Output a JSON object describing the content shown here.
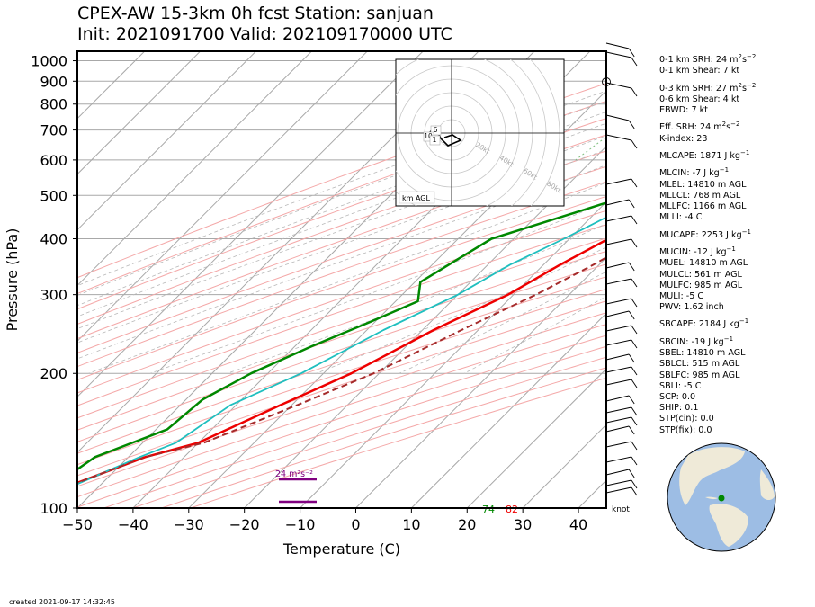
{
  "header": {
    "title_line1": "CPEX-AW 15-3km  0h fcst  Station: sanjuan",
    "title_line2": "Init: 2021091700  Valid: 202109170000 UTC"
  },
  "colors": {
    "temperature": "#ee0000",
    "dewpoint": "#008800",
    "wetbulb": "#1fbfbf",
    "parcel": "#a52a2a",
    "srh_bar": "#800080",
    "grid": "#a8a8a8",
    "dry_adiabat": "#f4a8a8",
    "mixing_ratio": "#7fbf7f"
  },
  "chart_data": {
    "type": "line",
    "xlabel": "Temperature (C)",
    "ylabel": "Pressure (hPa)",
    "xlim": [
      -50,
      45
    ],
    "ylim": [
      1050,
      100
    ],
    "y_scale": "log",
    "skew": true,
    "grid": true,
    "x_ticks": [
      "−50",
      "−40",
      "−30",
      "−20",
      "−10",
      "0",
      "10",
      "20",
      "30",
      "40"
    ],
    "y_ticks": [
      "100",
      "200",
      "300",
      "400",
      "500",
      "600",
      "700",
      "800",
      "900",
      "1000"
    ],
    "series": [
      {
        "name": "temperature",
        "points": [
          [
            29,
            1020
          ],
          [
            27,
            1000
          ],
          [
            25,
            950
          ],
          [
            23,
            900
          ],
          [
            21,
            850
          ],
          [
            19,
            800
          ],
          [
            17,
            750
          ],
          [
            16,
            700
          ],
          [
            14,
            650
          ],
          [
            11,
            600
          ],
          [
            8,
            550
          ],
          [
            5,
            500
          ],
          [
            1,
            450
          ],
          [
            -3,
            400
          ],
          [
            -7,
            350
          ],
          [
            -11,
            300
          ],
          [
            -18,
            250
          ],
          [
            -25,
            200
          ],
          [
            -32,
            170
          ],
          [
            -40,
            140
          ],
          [
            -47,
            130
          ],
          [
            -62,
            100
          ]
        ]
      },
      {
        "name": "dewpoint",
        "points": [
          [
            24,
            1010
          ],
          [
            23.5,
            1000
          ],
          [
            23,
            960
          ],
          [
            19,
            900
          ],
          [
            14,
            850
          ],
          [
            6,
            800
          ],
          [
            5,
            760
          ],
          [
            2,
            700
          ],
          [
            -6,
            650
          ],
          [
            -14,
            625
          ],
          [
            -6,
            600
          ],
          [
            -3,
            570
          ],
          [
            -4,
            540
          ],
          [
            -7,
            500
          ],
          [
            -15,
            450
          ],
          [
            -24,
            400
          ],
          [
            -27,
            350
          ],
          [
            -29,
            320
          ],
          [
            -26,
            290
          ],
          [
            -31,
            260
          ],
          [
            -37,
            230
          ],
          [
            -43,
            200
          ],
          [
            -47,
            175
          ],
          [
            -48,
            150
          ],
          [
            -56,
            130
          ],
          [
            -60,
            100
          ]
        ]
      },
      {
        "name": "wetbulb",
        "points": [
          [
            25.5,
            1010
          ],
          [
            24,
            1000
          ],
          [
            22,
            960
          ],
          [
            19.5,
            900
          ],
          [
            17,
            850
          ],
          [
            14,
            800
          ],
          [
            11,
            760
          ],
          [
            8,
            700
          ],
          [
            5,
            650
          ],
          [
            3,
            600
          ],
          [
            1,
            550
          ],
          [
            -2,
            500
          ],
          [
            -7,
            450
          ],
          [
            -11,
            400
          ],
          [
            -16,
            350
          ],
          [
            -20,
            300
          ],
          [
            -27,
            250
          ],
          [
            -34,
            200
          ],
          [
            -41,
            170
          ],
          [
            -44,
            140
          ],
          [
            -48,
            130
          ],
          [
            -60,
            100
          ]
        ]
      },
      {
        "name": "parcel",
        "points": [
          [
            31,
            1015
          ],
          [
            28.5,
            1000
          ],
          [
            25.5,
            950
          ],
          [
            24,
            900
          ],
          [
            22.5,
            850
          ],
          [
            21,
            800
          ],
          [
            19.5,
            750
          ],
          [
            18,
            700
          ],
          [
            16.5,
            650
          ],
          [
            14.5,
            600
          ],
          [
            12,
            550
          ],
          [
            9.5,
            500
          ],
          [
            6.5,
            450
          ],
          [
            2.5,
            400
          ],
          [
            -1,
            350
          ],
          [
            -6,
            300
          ],
          [
            -13,
            250
          ],
          [
            -21,
            200
          ],
          [
            -29,
            170
          ],
          [
            -39,
            140
          ],
          [
            -47,
            130
          ],
          [
            -62,
            100
          ]
        ]
      }
    ],
    "annotations": {
      "dewpoint_surface_label": "74",
      "temperature_surface_label": "82",
      "srh_label": "24 m²s⁻²",
      "wind_unit": "knot"
    }
  },
  "hodograph": {
    "label": "km AGL",
    "ring_labels": [
      "20kt",
      "40kt",
      "60kt",
      "80kt"
    ],
    "height_markers": [
      "6",
      "10",
      "1"
    ]
  },
  "stats": [
    [
      "0-1 km SRH: 24 m",
      "2",
      "s",
      "−2"
    ],
    [
      "0-1 km Shear: 7 kt"
    ],
    [
      "0-3 km SRH: 27 m",
      "2",
      "s",
      "−2"
    ],
    [
      "0-6 km Shear: 4 kt"
    ],
    [
      "EBWD: 7 kt"
    ],
    [
      "Eff. SRH: 24 m",
      "2",
      "s",
      "−2"
    ],
    [
      "K-index: 23"
    ],
    [
      "MLCAPE: 1871 J kg",
      "−1"
    ],
    [
      "MLCIN: -7 J kg",
      "−1"
    ],
    [
      "MLEL: 14810 m AGL"
    ],
    [
      "MLLCL: 768 m AGL"
    ],
    [
      "MLLFC: 1166 m AGL"
    ],
    [
      "MLLI: -4 C"
    ],
    [
      "MUCAPE: 2253 J kg",
      "−1"
    ],
    [
      "MUCIN: -12 J kg",
      "−1"
    ],
    [
      "MUEL: 14810 m AGL"
    ],
    [
      "MULCL: 561 m AGL"
    ],
    [
      "MULFC: 985 m AGL"
    ],
    [
      "MULI: -5 C"
    ],
    [
      "PWV: 1.62 inch"
    ],
    [
      "SBCAPE: 2184 J kg",
      "−1"
    ],
    [
      "SBCIN: -19 J kg",
      "−1"
    ],
    [
      "SBEL: 14810 m AGL"
    ],
    [
      "SBLCL: 515 m AGL"
    ],
    [
      "SBLFC: 985 m AGL"
    ],
    [
      "SBLI: -5 C"
    ],
    [
      "SCP: 0.0"
    ],
    [
      "SHIP: 0.1"
    ],
    [
      "STP(cin): 0.0"
    ],
    [
      "STP(fix): 0.0"
    ]
  ],
  "footer": {
    "created": "created 2021-09-17 14:32:45"
  }
}
